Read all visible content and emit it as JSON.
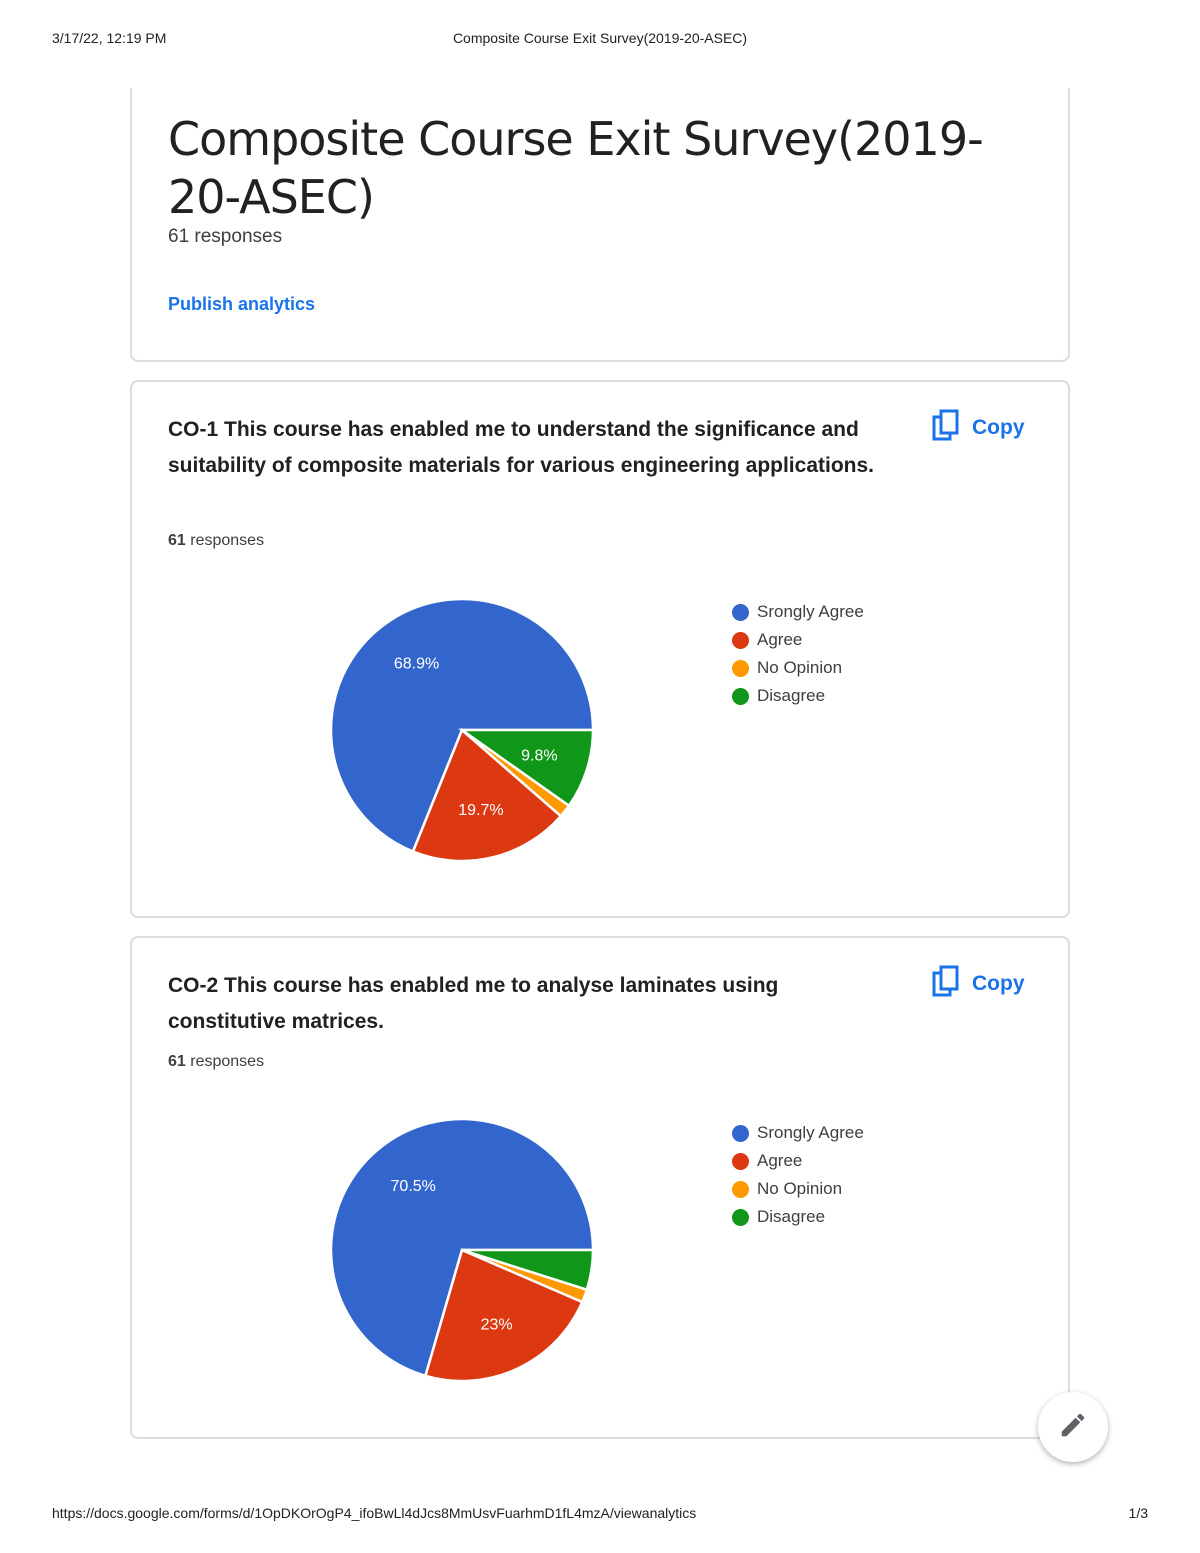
{
  "print_header": {
    "datetime": "3/17/22, 12:19 PM",
    "title": "Composite Course Exit Survey(2019-20-ASEC)"
  },
  "form": {
    "title": "Composite Course Exit Survey(2019-20-ASEC)",
    "responses": "61 responses",
    "publish_label": "Publish analytics"
  },
  "questions": [
    {
      "title": "CO-1 This course has enabled me to understand the significance and suitability of composite materials for various engineering applications.",
      "count_num": "61",
      "count_label": "responses",
      "copy_label": "Copy",
      "legend": [
        "Srongly Agree",
        "Agree",
        "No Opinion",
        "Disagree"
      ],
      "slice_labels": [
        "68.9%",
        "19.7%",
        "",
        "9.8%"
      ]
    },
    {
      "title": "CO-2 This course has enabled me to analyse laminates using constitutive matrices.",
      "count_num": "61",
      "count_label": "responses",
      "copy_label": "Copy",
      "legend": [
        "Srongly Agree",
        "Agree",
        "No Opinion",
        "Disagree"
      ],
      "slice_labels": [
        "70.5%",
        "23%",
        "",
        ""
      ]
    }
  ],
  "chart_data": [
    {
      "type": "pie",
      "title": "",
      "categories": [
        "Srongly Agree",
        "Agree",
        "No Opinion",
        "Disagree"
      ],
      "values": [
        68.9,
        19.7,
        1.6,
        9.8
      ],
      "colors": [
        "#3366cc",
        "#dc3912",
        "#ff9900",
        "#109618"
      ],
      "legend_position": "right"
    },
    {
      "type": "pie",
      "title": "",
      "categories": [
        "Srongly Agree",
        "Agree",
        "No Opinion",
        "Disagree"
      ],
      "values": [
        70.5,
        23.0,
        1.6,
        4.9
      ],
      "colors": [
        "#3366cc",
        "#dc3912",
        "#ff9900",
        "#109618"
      ],
      "legend_position": "right"
    }
  ],
  "colors": {
    "accent": "#1a73e8",
    "border": "#dadce0"
  },
  "icons": {
    "copy": "copy-icon",
    "edit": "pencil-icon"
  },
  "print_footer": {
    "url": "https://docs.google.com/forms/d/1OpDKOrOgP4_ifoBwLl4dJcs8MmUsvFuarhmD1fL4mzA/viewanalytics",
    "page": "1/3"
  }
}
